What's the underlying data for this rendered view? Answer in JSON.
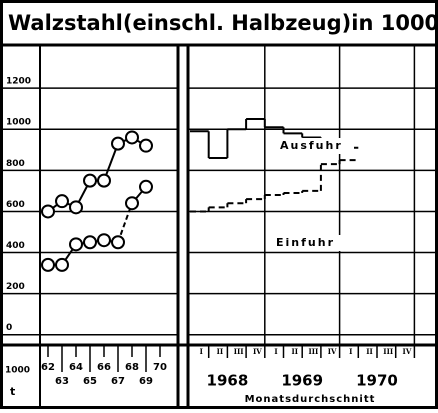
{
  "title": "Walzstahl(einschl. Halbzeug)in 1000 t",
  "unit": {
    "top": "1000",
    "bottom": "t"
  },
  "chart_data": [
    {
      "type": "line",
      "categories": [
        "62",
        "63",
        "64",
        "65",
        "66",
        "67",
        "68",
        "69",
        "70"
      ],
      "ylim": [
        -50,
        1410
      ],
      "yticks": [
        0,
        200,
        400,
        600,
        800,
        1000,
        1200
      ],
      "grid": true,
      "series": [
        {
          "name": "Ausfuhr",
          "color": "#000000",
          "values": [
            600,
            650,
            620,
            750,
            750,
            930,
            960,
            920,
            null
          ]
        },
        {
          "name": "Einfuhr",
          "color": "#000000",
          "values": [
            340,
            340,
            440,
            450,
            460,
            450,
            640,
            720,
            null
          ]
        }
      ]
    },
    {
      "type": "step",
      "categories": [
        "I",
        "II",
        "III",
        "IV",
        "I",
        "II",
        "III",
        "IV",
        "I",
        "II",
        "III",
        "IV"
      ],
      "years": [
        "1968",
        "1969",
        "1970"
      ],
      "x_label": "Monatsdurchschnitt",
      "ylim": [
        -50,
        1410
      ],
      "yticks": [
        0,
        200,
        400,
        600,
        800,
        1000,
        1200
      ],
      "grid": true,
      "series": [
        {
          "name": "Ausfuhr",
          "color": "#000000",
          "dash": false,
          "values": [
            990,
            860,
            1000,
            1050,
            1010,
            980,
            960,
            940,
            910,
            null,
            null,
            null
          ]
        },
        {
          "name": "Einfuhr",
          "color": "#000000",
          "dash": true,
          "values": [
            600,
            620,
            640,
            660,
            680,
            690,
            700,
            830,
            850,
            null,
            null,
            null
          ]
        }
      ]
    }
  ]
}
